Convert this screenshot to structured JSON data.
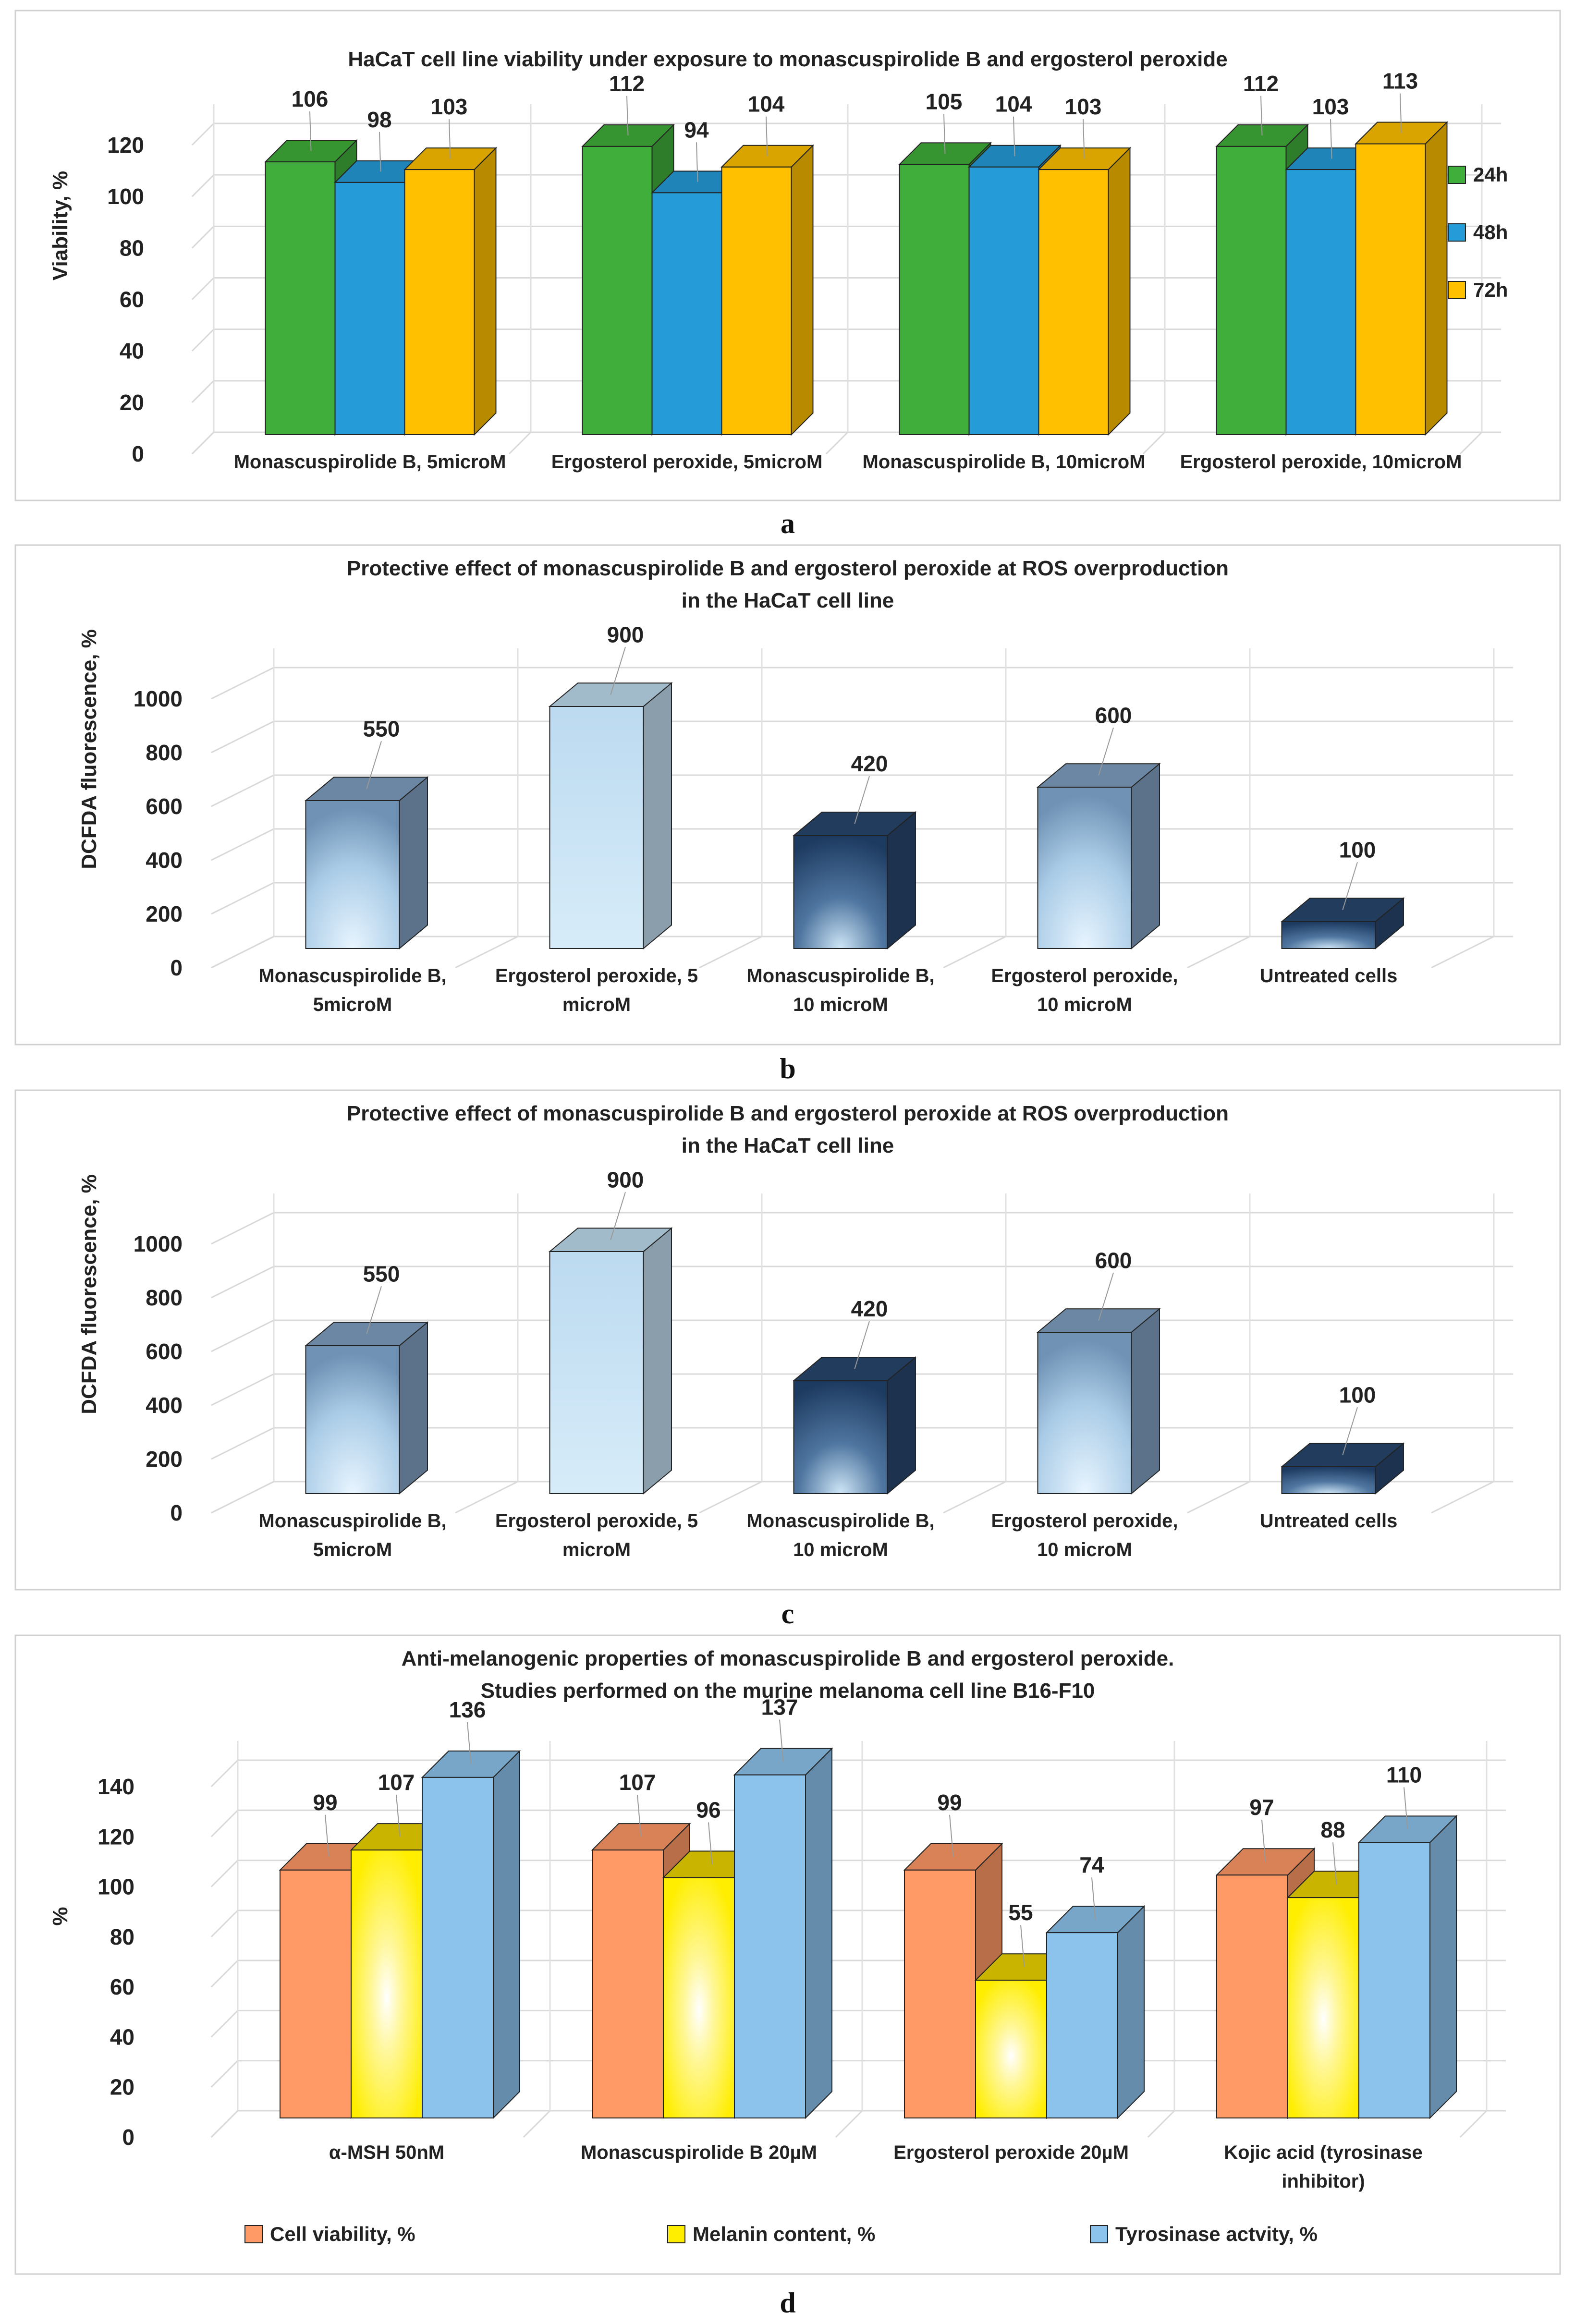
{
  "chart_data": [
    {
      "id": "a",
      "type": "bar",
      "title": "HaCaT cell line viability under exposure to monascuspirolide B and ergosterol peroxide",
      "ylabel": "Viability, %",
      "ylim": [
        0,
        120
      ],
      "yticks": [
        "0",
        "20",
        "40",
        "60",
        "80",
        "100",
        "120"
      ],
      "categories": [
        "Monascuspirolide B, 5microM",
        "Ergosterol peroxide, 5microM",
        "Monascuspirolide B, 10microM",
        "Ergosterol peroxide, 10microM"
      ],
      "series": [
        {
          "name": "24h",
          "values": [
            106,
            112,
            105,
            112
          ],
          "color": "#3fae3a"
        },
        {
          "name": "48h",
          "values": [
            98,
            94,
            104,
            103
          ],
          "color": "#259bd8"
        },
        {
          "name": "72h",
          "values": [
            103,
            104,
            103,
            113
          ],
          "color": "#ffc000"
        }
      ],
      "legend_position": "right",
      "panel_label": "a"
    },
    {
      "id": "b",
      "type": "bar",
      "title": "Protective effect of monascuspirolide B and ergosterol peroxide at ROS overproduction",
      "title2": "in the HaCaT cell line",
      "ylabel": "DCFDA fluorescence, %",
      "ylim": [
        0,
        1000
      ],
      "yticks": [
        "0",
        "200",
        "400",
        "600",
        "800",
        "1000"
      ],
      "categories": [
        [
          "Monascuspirolide B,",
          "5microM"
        ],
        [
          "Ergosterol peroxide, 5",
          "microM"
        ],
        [
          "Monascuspirolide B,",
          "10 microM"
        ],
        [
          "Ergosterol peroxide,",
          "10 microM"
        ],
        [
          "Untreated cells"
        ]
      ],
      "series": [
        {
          "name": "DCFDA fluorescence, %",
          "values": [
            550,
            900,
            420,
            600,
            100
          ]
        }
      ],
      "bar_colors": [
        "#7e9fc0",
        "#bfdcef",
        "#27466d",
        "#7e9fc0",
        "#27466d"
      ],
      "panel_label": "b"
    },
    {
      "id": "c",
      "type": "bar",
      "title": "Protective effect of monascuspirolide B and ergosterol peroxide at ROS overproduction",
      "title2": "in the HaCaT cell line",
      "ylabel": "DCFDA fluorescence, %",
      "ylim": [
        0,
        1000
      ],
      "yticks": [
        "0",
        "200",
        "400",
        "600",
        "800",
        "1000"
      ],
      "categories": [
        [
          "Monascuspirolide B,",
          "5microM"
        ],
        [
          "Ergosterol peroxide, 5",
          "microM"
        ],
        [
          "Monascuspirolide B,",
          "10 microM"
        ],
        [
          "Ergosterol peroxide,",
          "10 microM"
        ],
        [
          "Untreated cells"
        ]
      ],
      "series": [
        {
          "name": "DCFDA fluorescence, %",
          "values": [
            550,
            900,
            420,
            600,
            100
          ]
        }
      ],
      "bar_colors": [
        "#7e9fc0",
        "#bfdcef",
        "#27466d",
        "#7e9fc0",
        "#27466d"
      ],
      "panel_label": "c"
    },
    {
      "id": "d",
      "type": "bar",
      "title": "Anti-melanogenic properties of monascuspirolide B and ergosterol peroxide.",
      "title2": "Studies performed on the murine melanoma cell line B16-F10",
      "ylabel": "%",
      "ylim": [
        0,
        140
      ],
      "yticks": [
        "0",
        "20",
        "40",
        "60",
        "80",
        "100",
        "120",
        "140"
      ],
      "categories": [
        [
          "α-MSH  50nM"
        ],
        [
          "Monascuspirolide B 20µM"
        ],
        [
          "Ergosterol peroxide  20µM"
        ],
        [
          "Kojic acid (tyrosinase",
          "inhibitor)"
        ]
      ],
      "series": [
        {
          "name": "Cell viability, %",
          "values": [
            99,
            107,
            99,
            97
          ],
          "color": "#ff9966"
        },
        {
          "name": "Melanin content, %",
          "values": [
            107,
            96,
            55,
            88
          ],
          "color": "#ffee00"
        },
        {
          "name": "Tyrosinase actvity, %",
          "values": [
            136,
            137,
            74,
            110
          ],
          "color": "#8cc3ec"
        }
      ],
      "legend_position": "bottom",
      "panel_label": "d"
    }
  ]
}
